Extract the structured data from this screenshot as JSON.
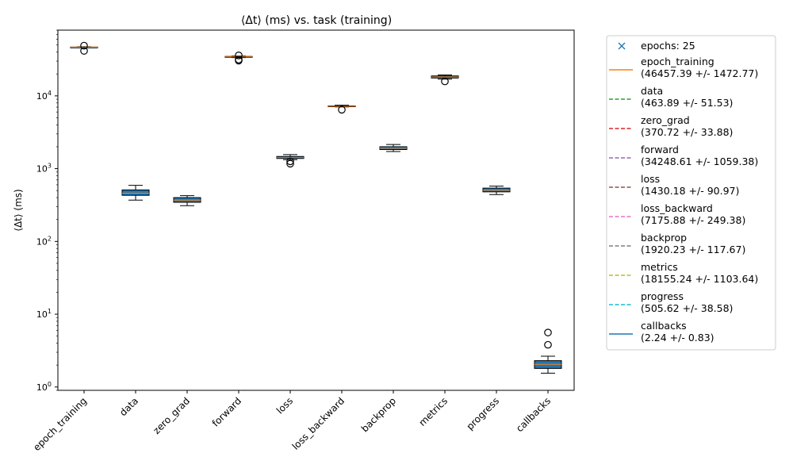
{
  "chart_data": {
    "type": "box",
    "title": "⟨Δt⟩ (ms) vs. task (training)",
    "ylabel": "⟨Δt⟩ (ms)",
    "yscale": "log",
    "ylim": [
      0.9,
      80000
    ],
    "ytick_values": [
      1,
      10,
      100,
      1000,
      10000
    ],
    "ytick_labels": [
      "10^0",
      "10^1",
      "10^2",
      "10^3",
      "10^4"
    ],
    "categories": [
      "epoch_training",
      "data",
      "zero_grad",
      "forward",
      "loss",
      "loss_backward",
      "backprop",
      "metrics",
      "progress",
      "callbacks"
    ],
    "boxes": [
      {
        "whislo": 46000,
        "q1": 46300,
        "med": 46600,
        "q3": 46900,
        "whishi": 47200,
        "fliers": [
          41500,
          49000
        ]
      },
      {
        "whislo": 370,
        "q1": 430,
        "med": 460,
        "q3": 510,
        "whishi": 590,
        "fliers": []
      },
      {
        "whislo": 310,
        "q1": 345,
        "med": 370,
        "q3": 400,
        "whishi": 425,
        "fliers": []
      },
      {
        "whislo": 33500,
        "q1": 33800,
        "med": 34300,
        "q3": 34800,
        "whishi": 35200,
        "fliers": [
          30500,
          31500,
          36000
        ]
      },
      {
        "whislo": 1330,
        "q1": 1380,
        "med": 1420,
        "q3": 1470,
        "whishi": 1560,
        "fliers": [
          1170,
          1260
        ]
      },
      {
        "whislo": 7050,
        "q1": 7100,
        "med": 7180,
        "q3": 7280,
        "whishi": 7450,
        "fliers": [
          6450
        ]
      },
      {
        "whislo": 1720,
        "q1": 1830,
        "med": 1920,
        "q3": 2000,
        "whishi": 2150,
        "fliers": []
      },
      {
        "whislo": 17000,
        "q1": 17600,
        "med": 18200,
        "q3": 18800,
        "whishi": 19400,
        "fliers": [
          15800
        ]
      },
      {
        "whislo": 440,
        "q1": 480,
        "med": 505,
        "q3": 540,
        "whishi": 575,
        "fliers": []
      },
      {
        "whislo": 1.55,
        "q1": 1.8,
        "med": 2.05,
        "q3": 2.3,
        "whishi": 2.65,
        "fliers": [
          3.8,
          5.6
        ]
      }
    ],
    "legend": {
      "placement": "outside-right",
      "entries": [
        {
          "marker": "x",
          "color": "#1f77b4",
          "label": "epochs: 25"
        },
        {
          "style": "solid",
          "color": "#ff7f0e",
          "label": "epoch_training",
          "sublabel": "(46457.39 +/- 1472.77)"
        },
        {
          "style": "dashed",
          "color": "#2ca02c",
          "label": "data",
          "sublabel": "(463.89 +/- 51.53)"
        },
        {
          "style": "dashed",
          "color": "#d62728",
          "label": "zero_grad",
          "sublabel": "(370.72 +/- 33.88)"
        },
        {
          "style": "dashed",
          "color": "#9467bd",
          "label": "forward",
          "sublabel": "(34248.61 +/- 1059.38)"
        },
        {
          "style": "dashed",
          "color": "#8c564b",
          "label": "loss",
          "sublabel": "(1430.18 +/- 90.97)"
        },
        {
          "style": "dashed",
          "color": "#e377c2",
          "label": "loss_backward",
          "sublabel": "(7175.88 +/- 249.38)"
        },
        {
          "style": "dashed",
          "color": "#7f7f7f",
          "label": "backprop",
          "sublabel": "(1920.23 +/- 117.67)"
        },
        {
          "style": "dashed",
          "color": "#bcbd22",
          "label": "metrics",
          "sublabel": "(18155.24 +/- 1103.64)"
        },
        {
          "style": "dashed",
          "color": "#17becf",
          "label": "progress",
          "sublabel": "(505.62 +/- 38.58)"
        },
        {
          "style": "solid",
          "color": "#1f77b4",
          "label": "callbacks",
          "sublabel": "(2.24 +/- 0.83)"
        }
      ]
    },
    "colors": {
      "box_fill": "#1f77b4",
      "median": "#ff7f0e",
      "axis": "#000000"
    }
  }
}
